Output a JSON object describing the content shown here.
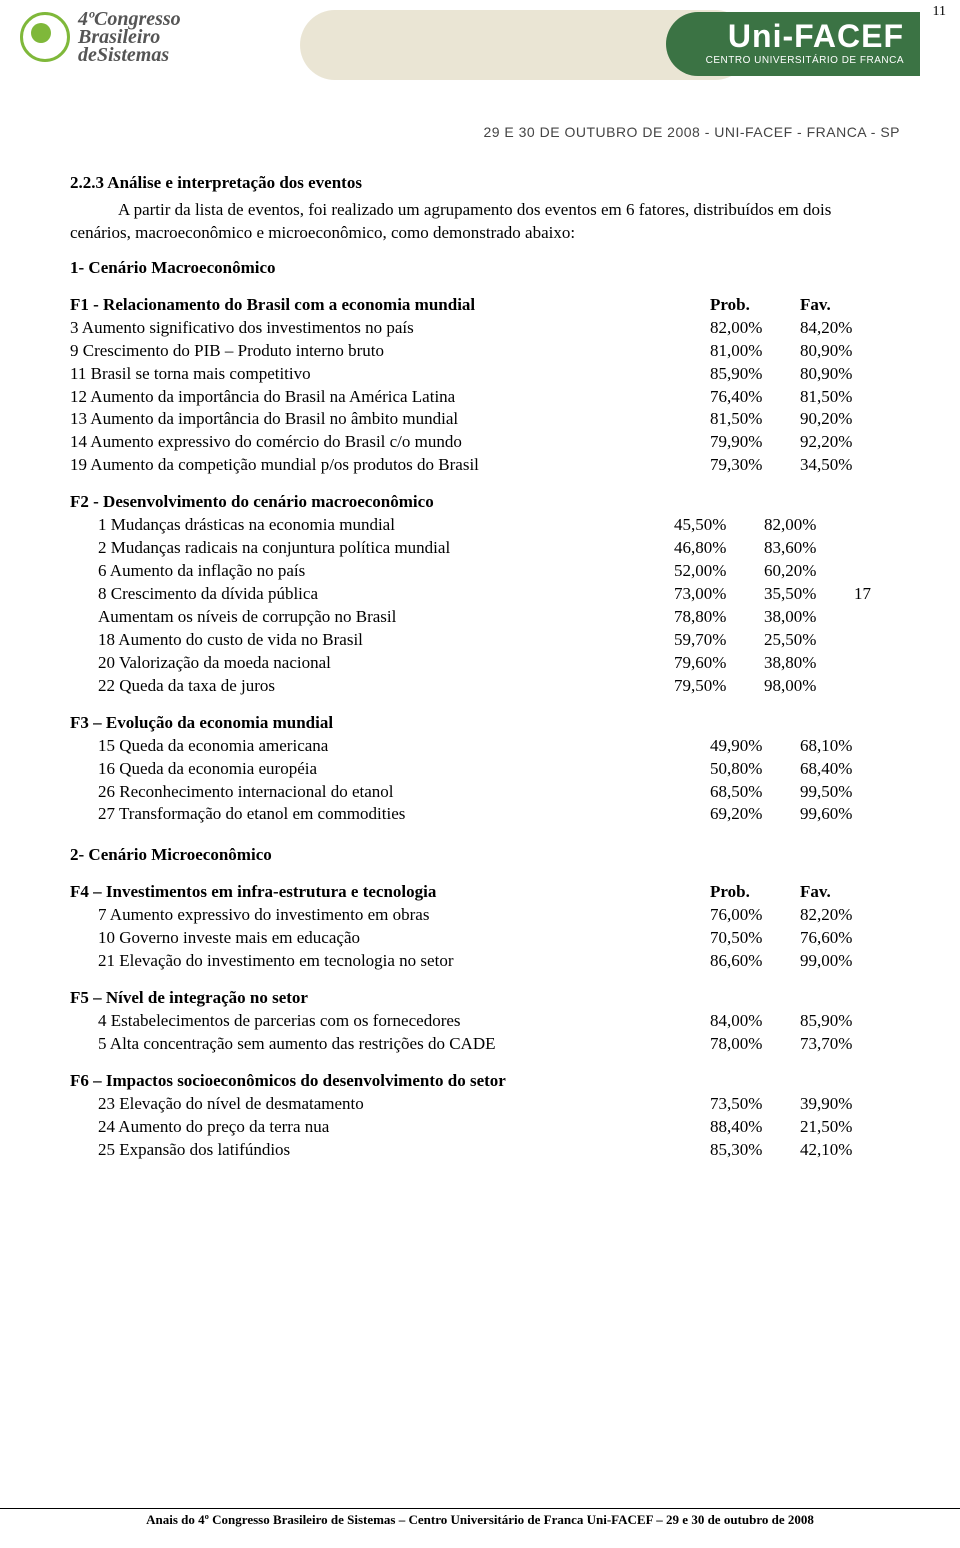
{
  "page_number_top": "11",
  "header": {
    "left_logo": {
      "line1": "4ºCongresso",
      "line2": "Brasileiro",
      "line3": "deSistemas"
    },
    "right_brand": "Uni-FACEF",
    "right_sub": "CENTRO UNIVERSITÁRIO DE FRANCA",
    "date_strip": "29 E 30 DE OUTUBRO DE 2008 - UNI-FACEF - FRANCA - SP"
  },
  "section": {
    "number_title": "2.2.3   Análise e interpretação dos eventos",
    "intro": "A partir da lista de eventos, foi realizado um agrupamento dos eventos em 6 fatores, distribuídos em dois cenários, macroeconômico e microeconômico, como demonstrado abaixo:"
  },
  "c1": {
    "title": "1- Cenário Macroeconômico",
    "f1": {
      "title": "F1 - Relacionamento do Brasil com a economia mundial",
      "h1": "Prob.",
      "h2": "Fav.",
      "rows": [
        {
          "l": "3 Aumento significativo dos investimentos no país",
          "p": "82,00%",
          "f": "84,20%"
        },
        {
          "l": "9 Crescimento do PIB – Produto interno bruto",
          "p": "81,00%",
          "f": "80,90%"
        },
        {
          "l": "11 Brasil se torna mais competitivo",
          "p": "85,90%",
          "f": "80,90%"
        },
        {
          "l": "12 Aumento da importância do Brasil na América Latina",
          "p": "76,40%",
          "f": "81,50%"
        },
        {
          "l": "13 Aumento da importância do Brasil no âmbito mundial",
          "p": "81,50%",
          "f": "90,20%"
        },
        {
          "l": "14 Aumento expressivo do comércio do Brasil c/o mundo",
          "p": "79,90%",
          "f": "92,20%"
        },
        {
          "l": "19 Aumento da competição mundial p/os produtos do Brasil",
          "p": "79,30%",
          "f": "34,50%"
        }
      ]
    },
    "f2": {
      "title": "F2 - Desenvolvimento do cenário macroeconômico",
      "rows": [
        {
          "l": "1 Mudanças drásticas na economia mundial",
          "p": "45,50%",
          "f": "82,00%",
          "x": ""
        },
        {
          "l": "2 Mudanças radicais na conjuntura política mundial",
          "p": "46,80%",
          "f": "83,60%",
          "x": ""
        },
        {
          "l": "6 Aumento da inflação no país",
          "p": "52,00%",
          "f": "60,20%",
          "x": ""
        },
        {
          "l": "8 Crescimento da dívida pública",
          "p": "73,00%",
          "f": "35,50%",
          "x": "17"
        },
        {
          "l": "Aumentam os níveis de corrupção no Brasil",
          "p": "78,80%",
          "f": "38,00%",
          "x": ""
        },
        {
          "l": "18 Aumento do custo de vida no Brasil",
          "p": "59,70%",
          "f": "25,50%",
          "x": ""
        },
        {
          "l": "20 Valorização da moeda nacional",
          "p": "79,60%",
          "f": "38,80%",
          "x": ""
        },
        {
          "l": "22 Queda da taxa de juros",
          "p": "79,50%",
          "f": "98,00%",
          "x": ""
        }
      ]
    },
    "f3": {
      "title": "F3 – Evolução da economia mundial",
      "rows": [
        {
          "l": "15 Queda da economia americana",
          "p": "49,90%",
          "f": "68,10%"
        },
        {
          "l": "16 Queda da economia européia",
          "p": "50,80%",
          "f": "68,40%"
        },
        {
          "l": "26 Reconhecimento internacional do etanol",
          "p": "68,50%",
          "f": "99,50%"
        },
        {
          "l": "27 Transformação do etanol em commodities",
          "p": "69,20%",
          "f": "99,60%"
        }
      ]
    }
  },
  "c2": {
    "title": "2- Cenário Microeconômico",
    "f4": {
      "title": "F4 – Investimentos em infra-estrutura e tecnologia",
      "h1": "Prob.",
      "h2": "Fav.",
      "rows": [
        {
          "l": "7 Aumento expressivo do investimento em obras",
          "p": "76,00%",
          "f": "82,20%"
        },
        {
          "l": "10 Governo investe mais em educação",
          "p": "70,50%",
          "f": "76,60%"
        },
        {
          "l": "21 Elevação do investimento em tecnologia no setor",
          "p": "86,60%",
          "f": "99,00%"
        }
      ]
    },
    "f5": {
      "title": "F5 – Nível de integração no setor",
      "rows": [
        {
          "l": "4 Estabelecimentos de parcerias com os fornecedores",
          "p": "84,00%",
          "f": "85,90%"
        },
        {
          "l": "5 Alta concentração sem aumento das restrições do CADE",
          "p": "78,00%",
          "f": "73,70%"
        }
      ]
    },
    "f6": {
      "title": "F6 – Impactos socioeconômicos do desenvolvimento do setor",
      "rows": [
        {
          "l": "23 Elevação do nível de desmatamento",
          "p": "73,50%",
          "f": "39,90%"
        },
        {
          "l": "24 Aumento do preço da terra nua",
          "p": "88,40%",
          "f": "21,50%"
        },
        {
          "l": "25 Expansão dos latifúndios",
          "p": "85,30%",
          "f": "42,10%"
        }
      ]
    }
  },
  "footer": "Anais do 4º Congresso Brasileiro de Sistemas – Centro Universitário de Franca Uni-FACEF – 29 e 30 de outubro de 2008"
}
